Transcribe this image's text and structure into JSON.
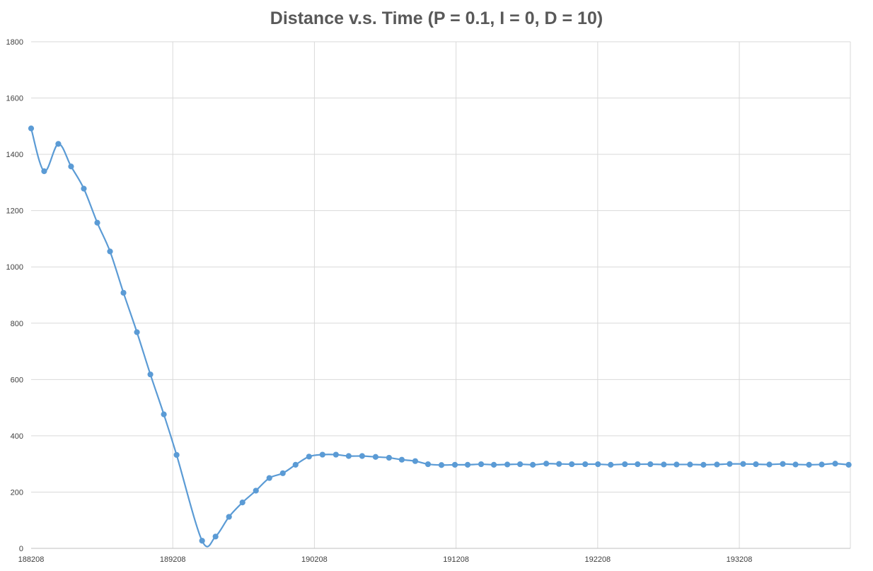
{
  "chart_data": {
    "type": "scatter",
    "title": "Distance v.s. Time (P = 0.1, I = 0, D = 10)",
    "xlabel": "",
    "ylabel": "",
    "xlim": [
      188208,
      193992
    ],
    "ylim": [
      0,
      1800
    ],
    "x_ticks": [
      188208,
      189208,
      190208,
      191208,
      192208,
      193208
    ],
    "y_ticks": [
      0,
      200,
      400,
      600,
      800,
      1000,
      1200,
      1400,
      1600,
      1800
    ],
    "grid": true,
    "legend": "none",
    "series": [
      {
        "color": "#5b9bd5",
        "smooth": true,
        "marker": "circle",
        "x": [
          188208,
          188300,
          188400,
          188490,
          188580,
          188675,
          188765,
          188860,
          188955,
          189050,
          189145,
          189235,
          189415,
          189510,
          189605,
          189700,
          189795,
          189890,
          189985,
          190075,
          190170,
          190265,
          190360,
          190450,
          190545,
          190640,
          190735,
          190825,
          190920,
          191010,
          191105,
          191200,
          191290,
          191385,
          191475,
          191570,
          191660,
          191750,
          191845,
          191935,
          192025,
          192120,
          192210,
          192300,
          192400,
          192490,
          192580,
          192675,
          192765,
          192860,
          192955,
          193050,
          193140,
          193235,
          193325,
          193420,
          193515,
          193605,
          193700,
          193790,
          193885,
          193980
        ],
        "y": [
          1492,
          1340,
          1437,
          1357,
          1278,
          1157,
          1055,
          908,
          768,
          618,
          476,
          332,
          27,
          42,
          112,
          163,
          205,
          250,
          267,
          297,
          326,
          333,
          333,
          328,
          328,
          325,
          322,
          315,
          310,
          299,
          296,
          297,
          297,
          299,
          297,
          298,
          299,
          297,
          301,
          300,
          299,
          299,
          299,
          297,
          299,
          299,
          299,
          298,
          298,
          298,
          297,
          298,
          300,
          300,
          299,
          298,
          300,
          298,
          297,
          298,
          301,
          297
        ]
      }
    ]
  }
}
